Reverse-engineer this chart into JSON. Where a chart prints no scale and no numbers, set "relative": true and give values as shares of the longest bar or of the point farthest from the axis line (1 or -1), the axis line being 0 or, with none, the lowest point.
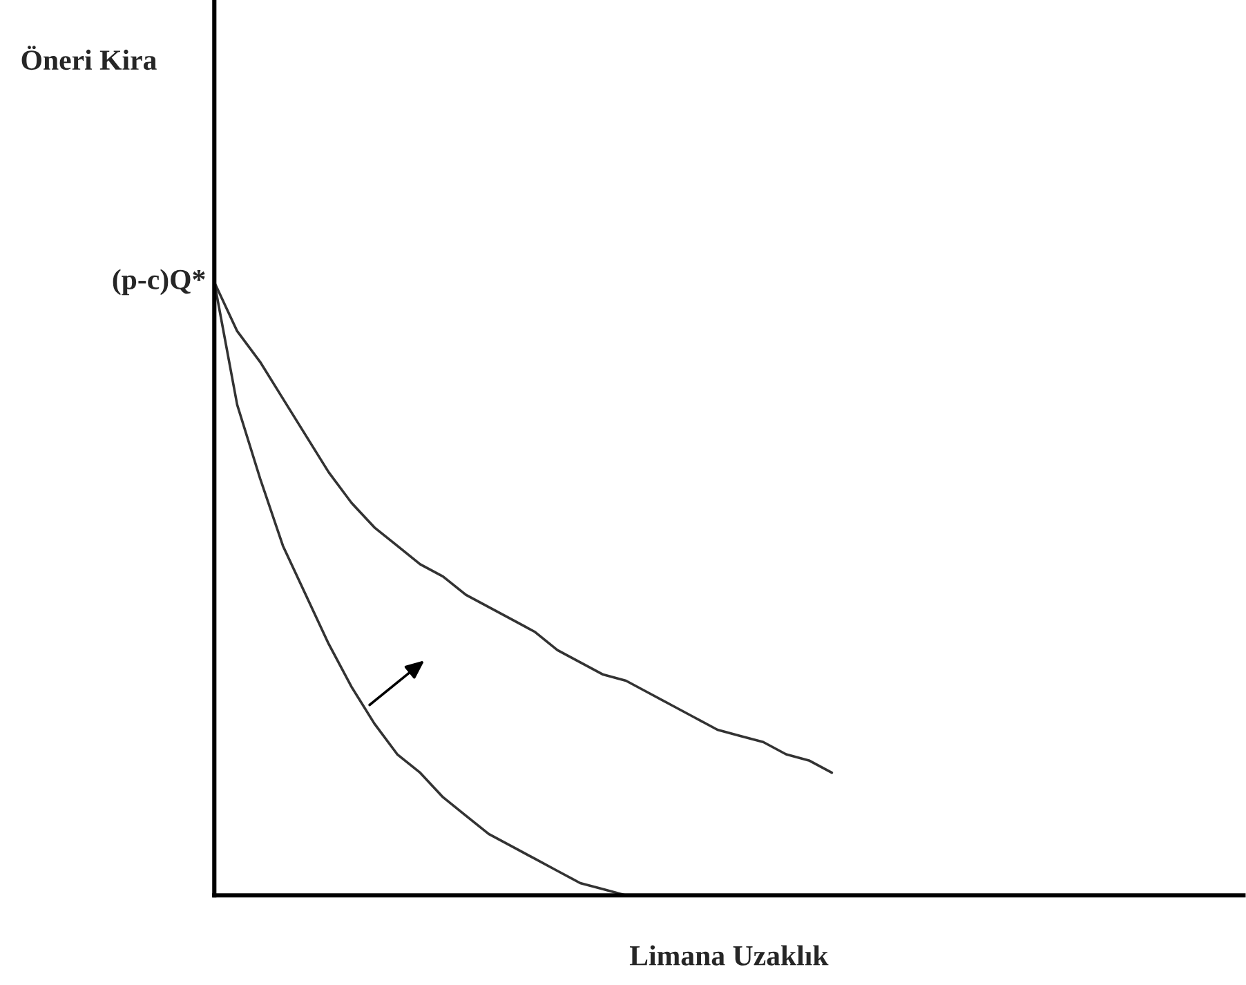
{
  "chart_data": {
    "type": "line",
    "relative": true,
    "xlabel": "Limana Uzaklık",
    "annotations": [
      "Öneri Kira",
      "(p-c)Q*"
    ],
    "categories": [
      null,
      null,
      null,
      null,
      null,
      null,
      null,
      null,
      null,
      null,
      null,
      null,
      null,
      null,
      null,
      null,
      null,
      null,
      null,
      null,
      null,
      null,
      null,
      null,
      null,
      null,
      null,
      null,
      null,
      null,
      null,
      null,
      null,
      null,
      null,
      null,
      null,
      null,
      null,
      null,
      null,
      null,
      null,
      null,
      null,
      null
    ],
    "series": [
      {
        "color": "#333333",
        "values": [
          1.0,
          0.92,
          0.87,
          0.81,
          0.75,
          0.69,
          0.64,
          0.6,
          0.57,
          0.54,
          0.52,
          0.49,
          0.47,
          0.45,
          0.43,
          0.4,
          0.38,
          0.36,
          0.35,
          0.33,
          0.31,
          0.29,
          0.27,
          0.26,
          0.25,
          0.23,
          0.22,
          0.2,
          null,
          null,
          null,
          null,
          null,
          null,
          null,
          null,
          null,
          null,
          null,
          null,
          null,
          null,
          null,
          null,
          null,
          null
        ]
      },
      {
        "color": "#333333",
        "values": [
          1.0,
          0.8,
          0.68,
          0.57,
          0.49,
          0.41,
          0.34,
          0.28,
          0.23,
          0.2,
          0.16,
          0.13,
          0.1,
          0.08,
          0.06,
          0.04,
          0.02,
          0.01,
          0.0,
          null,
          null,
          null,
          null,
          null,
          null,
          null,
          null,
          null,
          null,
          null,
          null,
          null,
          null,
          null,
          null,
          null,
          null,
          null,
          null,
          null,
          null,
          null,
          null,
          null,
          null,
          null
        ]
      }
    ]
  }
}
